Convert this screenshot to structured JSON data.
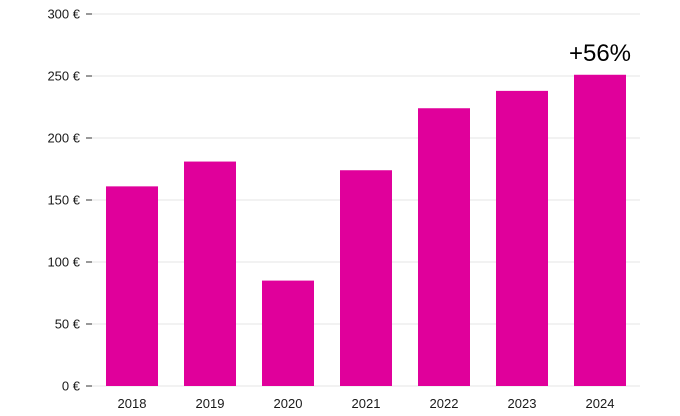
{
  "chart_data": {
    "type": "bar",
    "categories": [
      "2018",
      "2019",
      "2020",
      "2021",
      "2022",
      "2023",
      "2024"
    ],
    "values": [
      161,
      181,
      85,
      174,
      224,
      238,
      251
    ],
    "ylim": [
      0,
      300
    ],
    "yticks": [
      0,
      50,
      100,
      150,
      200,
      250,
      300
    ],
    "ytick_labels": [
      "0 €",
      "50 €",
      "100 €",
      "150 €",
      "200 €",
      "250 €",
      "300 €"
    ],
    "bar_color": "#e0009b",
    "grid": true,
    "annotation": {
      "text": "+56%",
      "category": "2024"
    },
    "title": "",
    "xlabel": "",
    "ylabel": ""
  }
}
